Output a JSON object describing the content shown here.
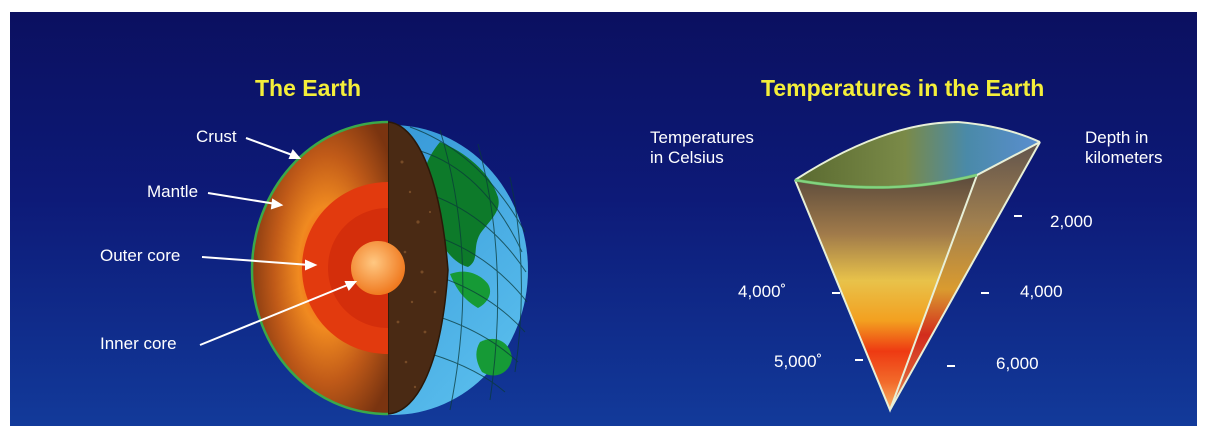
{
  "earth": {
    "title": "The Earth",
    "layers": {
      "crust": "Crust",
      "mantle": "Mantle",
      "outer_core": "Outer core",
      "inner_core": "Inner core"
    }
  },
  "temperature": {
    "title": "Temperatures in the Earth",
    "left_label": "Temperatures\nin Celsius",
    "right_label": "Depth in\nkilometers",
    "temps": [
      "4,000˚",
      "5,000˚"
    ],
    "depths": [
      "2,000",
      "4,000",
      "6,000"
    ]
  },
  "colors": {
    "title": "#f4ee3a",
    "background": "#0d1a78"
  }
}
